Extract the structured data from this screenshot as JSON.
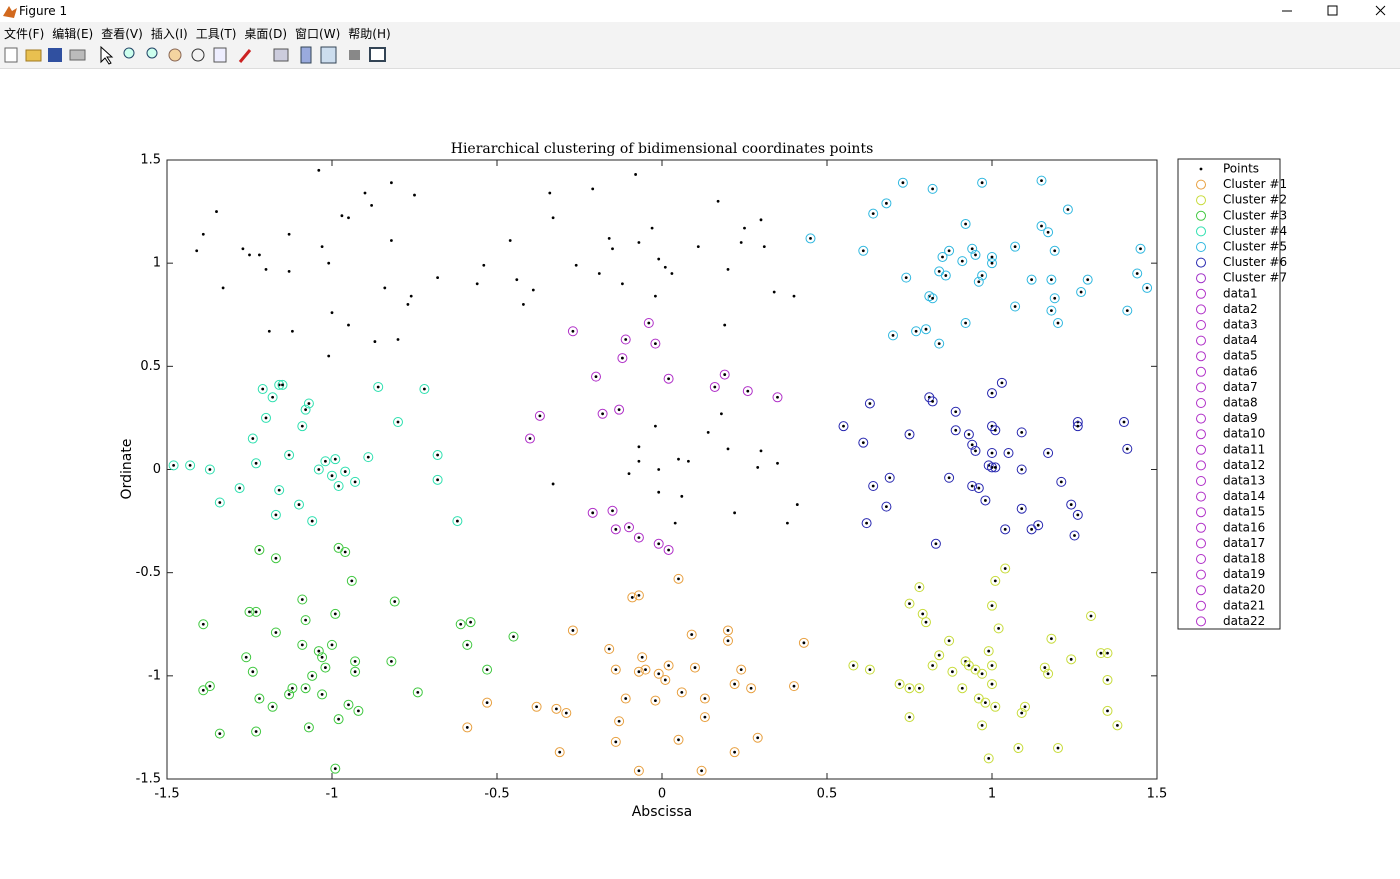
{
  "window": {
    "title": "Figure 1",
    "menu": [
      "文件(F)",
      "编辑(E)",
      "查看(V)",
      "插入(I)",
      "工具(T)",
      "桌面(D)",
      "窗口(W)",
      "帮助(H)"
    ]
  },
  "chart_data": {
    "type": "scatter",
    "title": "Hierarchical clustering of bidimensional coordinates points",
    "xlabel": "Abscissa",
    "ylabel": "Ordinate",
    "xlim": [
      -1.5,
      1.5
    ],
    "ylim": [
      -1.5,
      1.5
    ],
    "xticks": [
      -1.5,
      -1,
      -0.5,
      0,
      0.5,
      1,
      1.5
    ],
    "yticks": [
      -1.5,
      -1,
      -0.5,
      0,
      0.5,
      1,
      1.5
    ],
    "grid": false,
    "legend": "outside-right",
    "series": [
      {
        "name": "Points",
        "color": "#000000",
        "marker": "dot",
        "x": [
          -1.41,
          -1.39,
          -1.35,
          -1.33,
          -1.27,
          -1.25,
          -1.22,
          -1.2,
          -1.19,
          -1.13,
          -1.12,
          -1.13,
          -1.04,
          -1.03,
          -1.01,
          -1.0,
          -1.01,
          -0.97,
          -0.95,
          -0.95,
          -0.9,
          -0.88,
          -0.84,
          -0.82,
          -0.82,
          -0.8,
          -0.77,
          -0.75,
          -0.68,
          -0.87,
          -0.76,
          -0.46,
          -0.44,
          -0.42,
          -0.39,
          -0.34,
          -0.33,
          -0.21,
          -0.16,
          -0.15,
          -0.12,
          -0.08,
          -0.07,
          -0.03,
          -0.01,
          0.01,
          0.03,
          0.11,
          0.17,
          0.2,
          0.24,
          0.25,
          0.31,
          0.3,
          0.34,
          0.4,
          0.19,
          -0.19,
          -0.26,
          -0.56,
          -0.54,
          -0.02,
          -0.02,
          0.05,
          0.18,
          0.2,
          0.22,
          0.29,
          0.3,
          0.35,
          0.41,
          0.38,
          -0.33,
          -0.1,
          -0.07,
          -0.01,
          0.04,
          0.06,
          0.08,
          -0.01,
          -0.07,
          0.14
        ],
        "y": [
          1.06,
          1.14,
          1.25,
          0.88,
          1.07,
          1.04,
          1.04,
          0.97,
          0.67,
          1.14,
          0.67,
          0.96,
          1.45,
          1.08,
          1.0,
          0.76,
          0.55,
          1.23,
          1.22,
          0.7,
          1.34,
          1.28,
          0.88,
          1.39,
          1.11,
          0.63,
          0.8,
          1.33,
          0.93,
          0.62,
          0.84,
          1.11,
          0.92,
          0.8,
          0.87,
          1.34,
          1.22,
          1.36,
          1.12,
          1.07,
          0.9,
          1.43,
          1.1,
          1.17,
          1.02,
          0.98,
          0.95,
          1.08,
          1.3,
          0.97,
          1.1,
          1.17,
          1.08,
          1.21,
          0.86,
          0.84,
          0.7,
          0.95,
          0.99,
          0.9,
          0.99,
          0.84,
          0.21,
          0.05,
          0.27,
          0.1,
          -0.21,
          0.01,
          0.09,
          0.03,
          -0.17,
          -0.26,
          -0.07,
          -0.02,
          0.04,
          -0.11,
          -0.26,
          -0.13,
          0.04,
          0.0,
          0.11,
          0.18
        ]
      },
      {
        "name": "Cluster #1",
        "color": "#e8a040",
        "marker": "circle",
        "x": [
          -0.59,
          -0.53,
          -0.38,
          -0.32,
          -0.31,
          -0.29,
          -0.27,
          -0.16,
          -0.14,
          -0.14,
          -0.13,
          -0.11,
          -0.09,
          -0.07,
          -0.07,
          -0.06,
          -0.07,
          -0.05,
          -0.02,
          -0.01,
          0.01,
          0.02,
          0.05,
          0.05,
          0.06,
          0.09,
          0.1,
          0.12,
          0.13,
          0.13,
          0.2,
          0.2,
          0.22,
          0.22,
          0.24,
          0.27,
          0.29,
          0.4,
          0.43
        ],
        "y": [
          -1.25,
          -1.13,
          -1.15,
          -1.16,
          -1.37,
          -1.18,
          -0.78,
          -0.87,
          -0.97,
          -1.32,
          -1.22,
          -1.11,
          -0.62,
          -0.61,
          -1.46,
          -0.91,
          -0.98,
          -0.97,
          -1.12,
          -0.99,
          -1.02,
          -0.95,
          -0.53,
          -1.31,
          -1.08,
          -0.8,
          -0.96,
          -1.46,
          -1.2,
          -1.11,
          -0.78,
          -0.83,
          -1.04,
          -1.37,
          -0.97,
          -1.06,
          -1.3,
          -1.05,
          -0.84
        ]
      },
      {
        "name": "Cluster #2",
        "color": "#c8dc3c",
        "marker": "circle",
        "x": [
          0.58,
          0.63,
          0.72,
          0.75,
          0.75,
          0.75,
          0.78,
          0.78,
          0.79,
          0.8,
          0.82,
          0.84,
          0.87,
          0.88,
          0.91,
          0.92,
          0.93,
          0.95,
          0.96,
          0.97,
          0.97,
          0.98,
          0.99,
          0.99,
          1.0,
          1.0,
          1.01,
          1.0,
          1.01,
          1.02,
          1.04,
          1.08,
          1.09,
          1.1,
          1.16,
          1.17,
          1.18,
          1.2,
          1.24,
          1.3,
          1.33,
          1.35,
          1.35,
          1.35,
          1.38
        ],
        "y": [
          -0.95,
          -0.97,
          -1.04,
          -1.06,
          -1.2,
          -0.65,
          -1.06,
          -0.57,
          -0.7,
          -0.74,
          -0.95,
          -0.9,
          -0.83,
          -0.98,
          -1.06,
          -0.93,
          -0.95,
          -0.97,
          -1.11,
          -0.99,
          -1.24,
          -1.13,
          -1.4,
          -0.88,
          -0.95,
          -1.04,
          -1.15,
          -0.66,
          -0.54,
          -0.77,
          -0.48,
          -1.35,
          -1.18,
          -1.15,
          -0.96,
          -0.99,
          -0.82,
          -1.35,
          -0.92,
          -0.71,
          -0.89,
          -0.89,
          -1.02,
          -1.17,
          -1.24
        ]
      },
      {
        "name": "Cluster #3",
        "color": "#40c840",
        "marker": "circle",
        "x": [
          -1.39,
          -1.39,
          -1.37,
          -1.34,
          -1.26,
          -1.24,
          -1.25,
          -1.23,
          -1.23,
          -1.22,
          -1.22,
          -1.18,
          -1.17,
          -1.17,
          -1.13,
          -1.12,
          -1.09,
          -1.09,
          -1.08,
          -1.08,
          -1.07,
          -1.06,
          -1.04,
          -1.03,
          -1.03,
          -1.02,
          -1.0,
          -0.99,
          -0.98,
          -0.96,
          -0.98,
          -0.95,
          -0.94,
          -0.93,
          -0.93,
          -0.92,
          -0.99,
          -0.82,
          -0.81,
          -0.74,
          -0.61,
          -0.58,
          -0.59,
          -0.53,
          -0.45
        ],
        "y": [
          -0.75,
          -1.07,
          -1.05,
          -1.28,
          -0.91,
          -0.98,
          -0.69,
          -0.69,
          -1.27,
          -0.39,
          -1.11,
          -1.15,
          -0.43,
          -0.79,
          -1.09,
          -1.06,
          -0.63,
          -0.85,
          -0.73,
          -1.06,
          -1.25,
          -1.0,
          -0.88,
          -0.91,
          -1.09,
          -0.96,
          -0.85,
          -0.7,
          -0.38,
          -0.4,
          -1.21,
          -1.14,
          -0.54,
          -0.93,
          -0.98,
          -1.17,
          -1.45,
          -0.93,
          -0.64,
          -1.08,
          -0.75,
          -0.74,
          -0.85,
          -0.97,
          -0.81
        ]
      },
      {
        "name": "Cluster #4",
        "color": "#30e0b0",
        "marker": "circle",
        "x": [
          -1.48,
          -1.43,
          -1.37,
          -1.34,
          -1.28,
          -1.24,
          -1.23,
          -1.21,
          -1.2,
          -1.18,
          -1.16,
          -1.15,
          -1.17,
          -1.16,
          -1.13,
          -1.09,
          -1.08,
          -1.07,
          -1.1,
          -1.06,
          -1.04,
          -1.02,
          -0.99,
          -0.98,
          -0.93,
          -0.89,
          -0.86,
          -0.8,
          -0.72,
          -0.68,
          -0.68,
          -0.62,
          -1.0,
          -0.96
        ],
        "y": [
          0.02,
          0.02,
          0.0,
          -0.16,
          -0.09,
          0.15,
          0.03,
          0.39,
          0.25,
          0.35,
          0.41,
          0.41,
          -0.22,
          -0.1,
          0.07,
          0.21,
          0.29,
          0.32,
          -0.17,
          -0.25,
          0.0,
          0.04,
          0.05,
          -0.08,
          -0.06,
          0.06,
          0.4,
          0.23,
          0.39,
          0.07,
          -0.05,
          -0.25,
          -0.03,
          -0.01
        ]
      },
      {
        "name": "Cluster #5",
        "color": "#30b8e0",
        "marker": "circle",
        "x": [
          0.45,
          0.61,
          0.64,
          0.68,
          0.73,
          0.74,
          0.7,
          0.77,
          0.8,
          0.81,
          0.82,
          0.82,
          0.84,
          0.84,
          0.85,
          0.86,
          0.87,
          0.91,
          0.92,
          0.92,
          0.94,
          0.95,
          0.96,
          0.97,
          0.97,
          1.0,
          1.0,
          1.07,
          1.07,
          1.12,
          1.15,
          1.15,
          1.17,
          1.19,
          1.18,
          1.19,
          1.18,
          1.2,
          1.23,
          1.27,
          1.29,
          1.41,
          1.44,
          1.45,
          1.47
        ],
        "y": [
          1.12,
          1.06,
          1.24,
          1.29,
          1.39,
          0.93,
          0.65,
          0.67,
          0.68,
          0.84,
          1.36,
          0.83,
          0.61,
          0.96,
          1.03,
          0.94,
          1.06,
          1.01,
          1.19,
          0.71,
          1.07,
          1.04,
          0.91,
          0.94,
          1.39,
          1.0,
          1.03,
          0.79,
          1.08,
          0.92,
          1.4,
          1.18,
          1.15,
          1.06,
          0.77,
          0.83,
          0.92,
          0.71,
          1.26,
          0.86,
          0.92,
          0.77,
          0.95,
          1.07,
          0.88
        ]
      },
      {
        "name": "Cluster #6",
        "color": "#2828b0",
        "marker": "circle",
        "x": [
          0.55,
          0.61,
          0.62,
          0.63,
          0.64,
          0.68,
          0.69,
          0.75,
          0.81,
          0.82,
          0.83,
          0.87,
          0.89,
          0.89,
          0.93,
          0.94,
          0.95,
          0.94,
          0.96,
          0.98,
          0.99,
          1.0,
          1.01,
          1.0,
          1.0,
          1.03,
          1.0,
          1.01,
          1.04,
          1.05,
          1.09,
          1.09,
          1.09,
          1.12,
          1.14,
          1.17,
          1.21,
          1.24,
          1.25,
          1.26,
          1.26,
          1.26,
          1.4,
          1.41
        ],
        "y": [
          0.21,
          0.13,
          -0.26,
          0.32,
          -0.08,
          -0.18,
          -0.04,
          0.17,
          0.35,
          0.33,
          -0.36,
          -0.04,
          0.28,
          0.19,
          0.17,
          0.12,
          0.09,
          -0.08,
          -0.09,
          -0.15,
          0.02,
          0.01,
          0.01,
          0.21,
          0.37,
          0.42,
          0.08,
          0.19,
          -0.29,
          0.08,
          0.18,
          -0.19,
          0.0,
          -0.29,
          -0.27,
          0.08,
          -0.06,
          -0.17,
          -0.32,
          -0.22,
          0.23,
          0.21,
          0.23,
          0.1
        ]
      },
      {
        "name": "Cluster #7",
        "color": "#a030c8",
        "marker": "circle",
        "x": [],
        "y": []
      },
      {
        "name": "data1",
        "color": "#b030c8",
        "marker": "circle",
        "x": [
          -0.27
        ],
        "y": [
          0.67
        ]
      },
      {
        "name": "data2",
        "color": "#b030c8",
        "marker": "circle",
        "x": [
          -0.2
        ],
        "y": [
          0.45
        ]
      },
      {
        "name": "data3",
        "color": "#b030c8",
        "marker": "circle",
        "x": [
          -0.18
        ],
        "y": [
          0.27
        ]
      },
      {
        "name": "data4",
        "color": "#b030c8",
        "marker": "circle",
        "x": [
          -0.13
        ],
        "y": [
          0.29
        ]
      },
      {
        "name": "data5",
        "color": "#b030c8",
        "marker": "circle",
        "x": [
          -0.11
        ],
        "y": [
          0.63
        ]
      },
      {
        "name": "data6",
        "color": "#b030c8",
        "marker": "circle",
        "x": [
          -0.12
        ],
        "y": [
          0.54
        ]
      },
      {
        "name": "data7",
        "color": "#b030c8",
        "marker": "circle",
        "x": [
          -0.04
        ],
        "y": [
          0.71
        ]
      },
      {
        "name": "data8",
        "color": "#b030c8",
        "marker": "circle",
        "x": [
          -0.02
        ],
        "y": [
          0.61
        ]
      },
      {
        "name": "data9",
        "color": "#b030c8",
        "marker": "circle",
        "x": [
          0.02
        ],
        "y": [
          0.44
        ]
      },
      {
        "name": "data10",
        "color": "#b030c8",
        "marker": "circle",
        "x": [
          0.16
        ],
        "y": [
          0.4
        ]
      },
      {
        "name": "data11",
        "color": "#b030c8",
        "marker": "circle",
        "x": [
          0.19
        ],
        "y": [
          0.46
        ]
      },
      {
        "name": "data12",
        "color": "#b030c8",
        "marker": "circle",
        "x": [
          0.26
        ],
        "y": [
          0.38
        ]
      },
      {
        "name": "data13",
        "color": "#b030c8",
        "marker": "circle",
        "x": [
          0.35
        ],
        "y": [
          0.35
        ]
      },
      {
        "name": "data14",
        "color": "#b030c8",
        "marker": "circle",
        "x": [
          -0.37
        ],
        "y": [
          0.26
        ]
      },
      {
        "name": "data15",
        "color": "#b030c8",
        "marker": "circle",
        "x": [
          -0.4
        ],
        "y": [
          0.15
        ]
      },
      {
        "name": "data16",
        "color": "#b030c8",
        "marker": "circle",
        "x": [
          -0.21
        ],
        "y": [
          -0.21
        ]
      },
      {
        "name": "data17",
        "color": "#b030c8",
        "marker": "circle",
        "x": [
          -0.15
        ],
        "y": [
          -0.2
        ]
      },
      {
        "name": "data18",
        "color": "#b030c8",
        "marker": "circle",
        "x": [
          -0.14
        ],
        "y": [
          -0.29
        ]
      },
      {
        "name": "data19",
        "color": "#b030c8",
        "marker": "circle",
        "x": [
          -0.1
        ],
        "y": [
          -0.28
        ]
      },
      {
        "name": "data20",
        "color": "#b030c8",
        "marker": "circle",
        "x": [
          -0.07
        ],
        "y": [
          -0.33
        ]
      },
      {
        "name": "data21",
        "color": "#b030c8",
        "marker": "circle",
        "x": [
          -0.01
        ],
        "y": [
          -0.36
        ]
      },
      {
        "name": "data22",
        "color": "#b030c8",
        "marker": "circle",
        "x": [
          0.02
        ],
        "y": [
          -0.39
        ]
      }
    ]
  }
}
